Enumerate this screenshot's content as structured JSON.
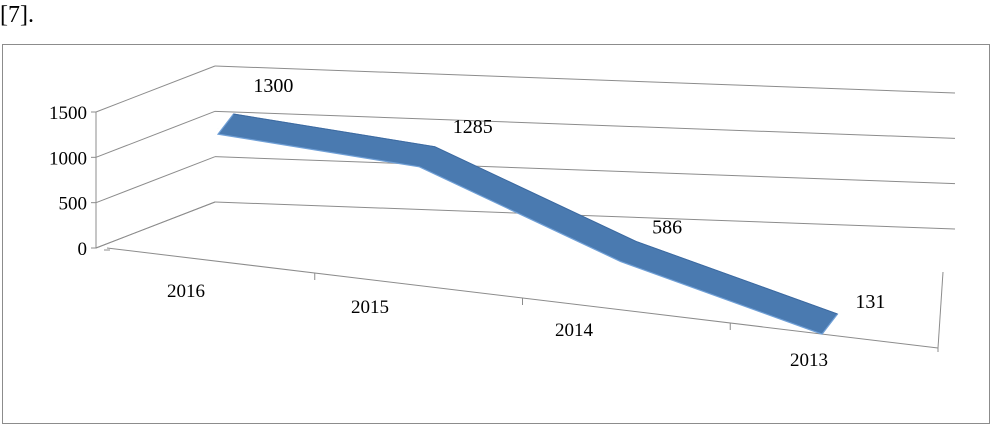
{
  "caption_fragment": "[7].",
  "chart_data": {
    "type": "line",
    "style": "3d-ribbon",
    "categories": [
      "2016",
      "2015",
      "2014",
      "2013"
    ],
    "series": [
      {
        "values": [
          1300,
          1285,
          586,
          131
        ],
        "color": "#4a7ab0"
      }
    ],
    "data_labels": [
      "1300",
      "1285",
      "586",
      "131"
    ],
    "y_ticks": [
      "0",
      "500",
      "1000",
      "1500"
    ],
    "ylim": [
      0,
      1500
    ],
    "grid": true,
    "gridline_color": "#8c8c8c",
    "axis_color": "#8c8c8c",
    "title": "",
    "xlabel": "",
    "ylabel": ""
  }
}
